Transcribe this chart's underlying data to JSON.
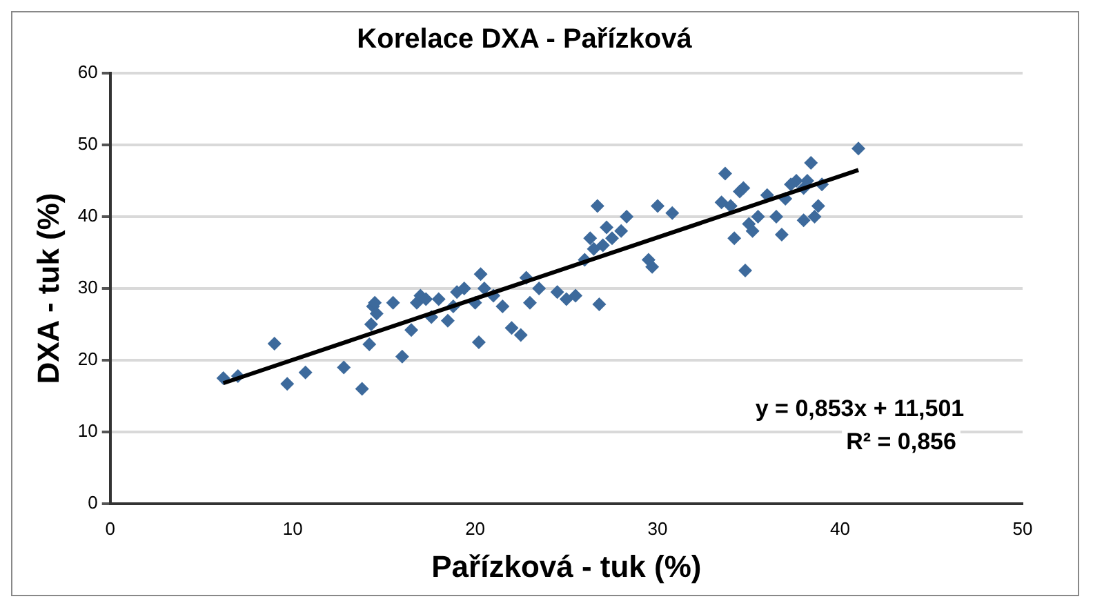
{
  "chart_data": {
    "type": "scatter",
    "title": "Korelace DXA - Pařízková",
    "xlabel": "Pařízková - tuk (%)",
    "ylabel": "DXA - tuk (%)",
    "xlim": [
      0,
      50
    ],
    "xticks": [
      0,
      10,
      20,
      30,
      40,
      50
    ],
    "ylim": [
      0,
      60
    ],
    "yticks": [
      0,
      10,
      20,
      30,
      40,
      50,
      60
    ],
    "grid": "y",
    "legend": false,
    "marker": "diamond",
    "series": [
      {
        "color": "#3d6a9c",
        "x": [
          6.2,
          7,
          9,
          9.7,
          10.7,
          12.8,
          13.8,
          14.2,
          14.3,
          14.4,
          14.5,
          14.6,
          15.5,
          16,
          16.5,
          16.8,
          17,
          17.3,
          17.6,
          18,
          18.5,
          18.8,
          19,
          19.4,
          20,
          20.2,
          20.3,
          20.5,
          21,
          21.5,
          22,
          22.5,
          22.8,
          23,
          23.5,
          24.5,
          25,
          25.5,
          26,
          26.3,
          26.5,
          26.7,
          26.8,
          27,
          27.2,
          27.5,
          28,
          28.3,
          29.5,
          29.7,
          30,
          30.8,
          33.5,
          33.7,
          34,
          34.2,
          34.5,
          34.7,
          34.8,
          35,
          35.2,
          35.5,
          36,
          36.5,
          36.8,
          37,
          37.3,
          37.6,
          38,
          38,
          38.2,
          38.4,
          38.6,
          38.8,
          39,
          41
        ],
        "values": [
          17.5,
          17.8,
          22.3,
          16.7,
          18.3,
          19,
          16,
          22.2,
          25,
          27.5,
          28,
          26.5,
          28,
          20.5,
          24.2,
          28,
          29,
          28.5,
          26,
          28.5,
          25.5,
          27.5,
          29.5,
          30,
          28,
          22.5,
          32,
          30,
          29,
          27.5,
          24.5,
          23.5,
          31.5,
          28,
          30,
          29.5,
          28.5,
          29,
          34,
          37,
          35.5,
          41.5,
          27.8,
          36,
          38.5,
          37,
          38,
          40,
          34,
          33,
          41.5,
          40.5,
          42,
          46,
          41.5,
          37,
          43.5,
          44,
          32.5,
          39,
          38,
          40,
          43,
          40,
          37.5,
          42.5,
          44.5,
          45,
          39.5,
          44,
          45,
          47.5,
          40,
          41.5,
          44.5,
          49.5
        ]
      },
      {
        "type": "line",
        "color": "#000000",
        "x": [
          6.2,
          41
        ],
        "values": [
          16.8,
          46.5
        ],
        "marker": "none",
        "line_style": "solid"
      }
    ],
    "annotations": [
      "y = 0,853x + 11,501",
      "R² = 0,856"
    ]
  }
}
